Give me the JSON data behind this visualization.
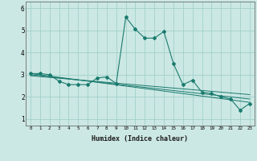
{
  "title": "",
  "xlabel": "Humidex (Indice chaleur)",
  "background_color": "#cce8e4",
  "line_color": "#1a7a6e",
  "grid_color": "#99ccc6",
  "xlim": [
    -0.5,
    23.5
  ],
  "ylim": [
    0.7,
    6.3
  ],
  "yticks": [
    1,
    2,
    3,
    4,
    5,
    6
  ],
  "xticks": [
    0,
    1,
    2,
    3,
    4,
    5,
    6,
    7,
    8,
    9,
    10,
    11,
    12,
    13,
    14,
    15,
    16,
    17,
    18,
    19,
    20,
    21,
    22,
    23
  ],
  "series1": {
    "x": [
      0,
      1,
      2,
      3,
      4,
      5,
      6,
      7,
      8,
      9,
      10,
      11,
      12,
      13,
      14,
      15,
      16,
      17,
      18,
      19,
      20,
      21,
      22,
      23
    ],
    "y": [
      3.05,
      3.05,
      3.0,
      2.7,
      2.55,
      2.55,
      2.55,
      2.85,
      2.9,
      2.6,
      5.6,
      5.05,
      4.65,
      4.65,
      4.95,
      3.5,
      2.55,
      2.75,
      2.2,
      2.15,
      2.0,
      1.9,
      1.4,
      1.7
    ]
  },
  "series2_linear": {
    "x": [
      0,
      23
    ],
    "y": [
      3.05,
      1.75
    ]
  },
  "series3_linear": {
    "x": [
      0,
      23
    ],
    "y": [
      3.0,
      1.9
    ]
  },
  "series4_linear": {
    "x": [
      0,
      23
    ],
    "y": [
      2.95,
      2.1
    ]
  }
}
